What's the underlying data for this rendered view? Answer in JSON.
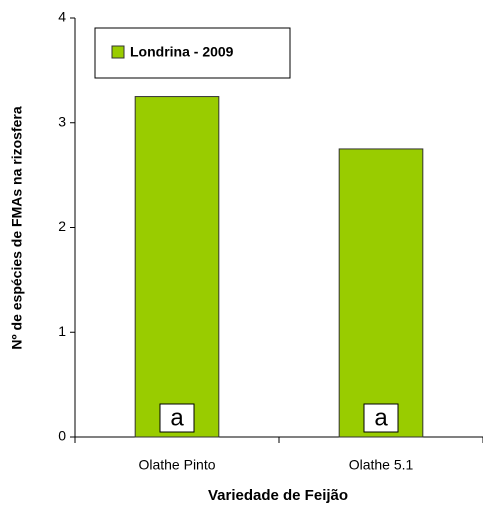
{
  "chart_data": {
    "type": "bar",
    "x_label": "Variedade de Feijão",
    "y_label": "Nº de espécies de FMAs na rizosfera",
    "categories": [
      "Olathe Pinto",
      "Olathe 5.1"
    ],
    "series": [
      {
        "name": "Londrina - 2009",
        "color": "#99cc00",
        "values": [
          3.25,
          2.75
        ]
      }
    ],
    "annotations": [
      "a",
      "a"
    ],
    "ylim": [
      0,
      4
    ],
    "yticks": [
      0,
      1,
      2,
      3,
      4
    ],
    "legend": "top-left"
  }
}
